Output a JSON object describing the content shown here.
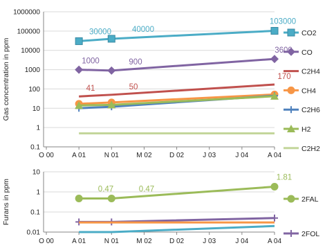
{
  "chart_data": [
    {
      "type": "line",
      "ylabel": "Gas concentration in ppm",
      "yscale": "log",
      "ylim": [
        0.1,
        1000000
      ],
      "yticks": [
        "0.1",
        "1",
        "10",
        "100",
        "1000",
        "10000",
        "100000",
        "1000000"
      ],
      "xticks": [
        "O 00",
        "A 01",
        "N 01",
        "M 02",
        "D 02",
        "J 03",
        "J 04",
        "A 04"
      ],
      "grid": true,
      "legend": "right",
      "series": [
        {
          "name": "CO2",
          "color": "#4bacc6",
          "marker": "square",
          "x": [
            "A 01",
            "N 01",
            "A 04"
          ],
          "values": [
            30000,
            40000,
            103000
          ],
          "labels": [
            "30000",
            "40000",
            "103000"
          ]
        },
        {
          "name": "CO",
          "color": "#8064a2",
          "marker": "diamond",
          "x": [
            "A 01",
            "N 01",
            "A 04"
          ],
          "values": [
            1000,
            900,
            3600
          ],
          "labels": [
            "1000",
            "900",
            "3600"
          ]
        },
        {
          "name": "C2H4",
          "color": "#c0504d",
          "marker": "none",
          "x": [
            "A 01",
            "N 01",
            "A 04"
          ],
          "values": [
            41,
            50,
            170
          ],
          "labels": [
            "41",
            "50",
            "170"
          ]
        },
        {
          "name": "CH4",
          "color": "#f79646",
          "marker": "circle",
          "x": [
            "A 01",
            "N 01",
            "A 04"
          ],
          "values": [
            17,
            20,
            52
          ],
          "labels": []
        },
        {
          "name": "C2H6",
          "color": "#4f81bd",
          "marker": "plus",
          "x": [
            "A 01",
            "N 01",
            "A 04"
          ],
          "values": [
            10,
            12,
            45
          ],
          "labels": []
        },
        {
          "name": "H2",
          "color": "#9bbb59",
          "marker": "triangle",
          "x": [
            "A 01",
            "N 01",
            "A 04"
          ],
          "values": [
            14,
            15,
            42
          ],
          "labels": []
        },
        {
          "name": "C2H2",
          "color": "#c3d69b",
          "marker": "none",
          "x": [
            "A 01",
            "N 01",
            "A 04"
          ],
          "values": [
            0.5,
            0.5,
            0.5
          ],
          "labels": []
        }
      ]
    },
    {
      "type": "line",
      "ylabel": "Furans in ppm",
      "yscale": "log",
      "ylim": [
        0.01,
        10
      ],
      "yticks": [
        "0.01",
        "0.1",
        "1",
        "10"
      ],
      "xticks": [
        "O 00",
        "A 01",
        "N 01",
        "M 02",
        "D 02",
        "J 03",
        "J 04",
        "A 04"
      ],
      "grid": true,
      "legend": "right",
      "series": [
        {
          "name": "2FAL",
          "color": "#9bbb59",
          "marker": "circle",
          "x": [
            "A 01",
            "N 01",
            "A 04"
          ],
          "values": [
            0.47,
            0.47,
            1.81
          ],
          "labels": [
            "0.47",
            "0.47",
            "1.81"
          ]
        },
        {
          "name": "2FOL",
          "color": "#8064a2",
          "marker": "plus",
          "x": [
            "A 01",
            "N 01",
            "A 04"
          ],
          "values": [
            0.032,
            0.032,
            0.05
          ],
          "labels": []
        },
        {
          "name": "",
          "color": "#f79646",
          "marker": "none",
          "x": [
            "A 01",
            "N 01",
            "A 04"
          ],
          "values": [
            0.03,
            0.03,
            0.03
          ],
          "labels": []
        },
        {
          "name": "",
          "color": "#4bacc6",
          "marker": "none",
          "x": [
            "A 01",
            "N 01",
            "A 04"
          ],
          "values": [
            0.01,
            0.01,
            0.02
          ],
          "labels": []
        }
      ]
    }
  ]
}
